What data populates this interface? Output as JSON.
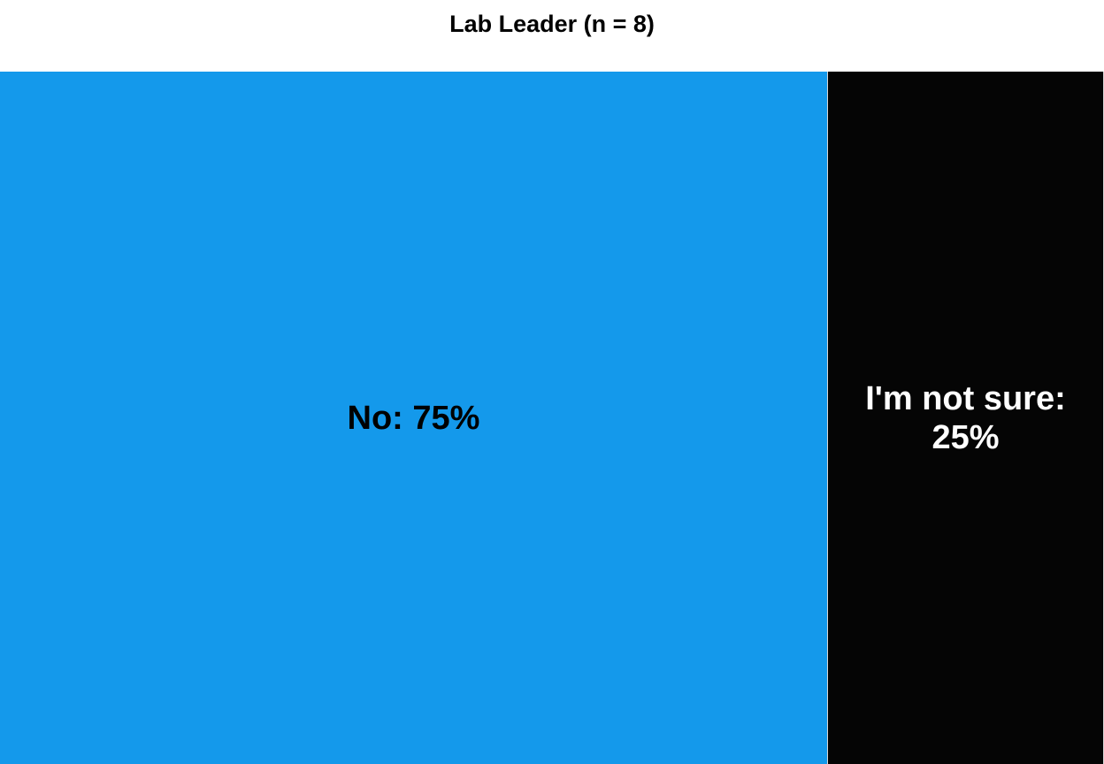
{
  "chart_data": {
    "type": "treemap",
    "title": "Lab Leader (n = 8)",
    "categories": [
      "No",
      "I'm not sure"
    ],
    "values": [
      75,
      25
    ],
    "unit": "%",
    "labels": [
      "No: 75%",
      "I'm not sure: 25%"
    ],
    "colors": [
      "#1499eb",
      "#050505"
    ],
    "label_colors": [
      "#000000",
      "#ffffff"
    ],
    "legend": "none",
    "grid": false
  }
}
